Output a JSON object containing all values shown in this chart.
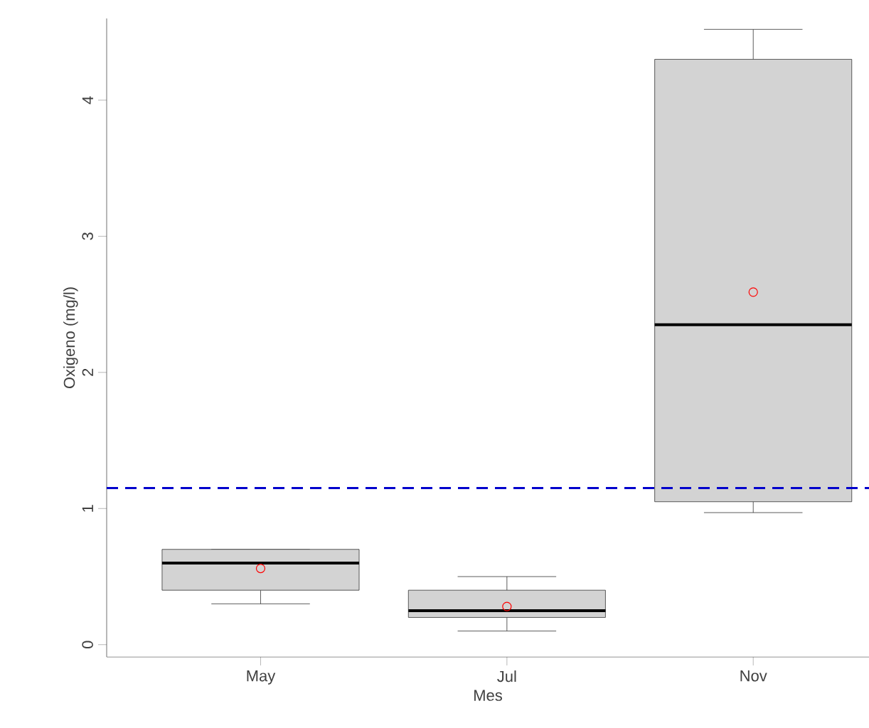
{
  "chart_data": {
    "type": "box",
    "xlabel": "Mes",
    "ylabel": "Oxigeno (mg/l)",
    "categories": [
      "May",
      "Jul",
      "Nov"
    ],
    "ylim": [
      -0.09,
      4.6
    ],
    "yticks": [
      0,
      1,
      2,
      3,
      4
    ],
    "color": "#d3d3d3",
    "boxes": [
      {
        "low": 0.3,
        "q1": 0.4,
        "median": 0.6,
        "q3": 0.7,
        "high": 0.7
      },
      {
        "low": 0.1,
        "q1": 0.2,
        "median": 0.25,
        "q3": 0.4,
        "high": 0.5
      },
      {
        "low": 0.97,
        "q1": 1.05,
        "median": 2.35,
        "q3": 4.3,
        "high": 4.52
      }
    ],
    "series": [
      {
        "type": "scatter",
        "x": [
          "May",
          "Jul",
          "Nov"
        ],
        "values": [
          0.56,
          0.28,
          2.59
        ],
        "color": "#ff0000",
        "marker": "circle"
      }
    ],
    "ref_lines": [
      {
        "axis": "y",
        "value": 1.15,
        "color": "#0000cc",
        "line_style": "dashed"
      }
    ]
  }
}
